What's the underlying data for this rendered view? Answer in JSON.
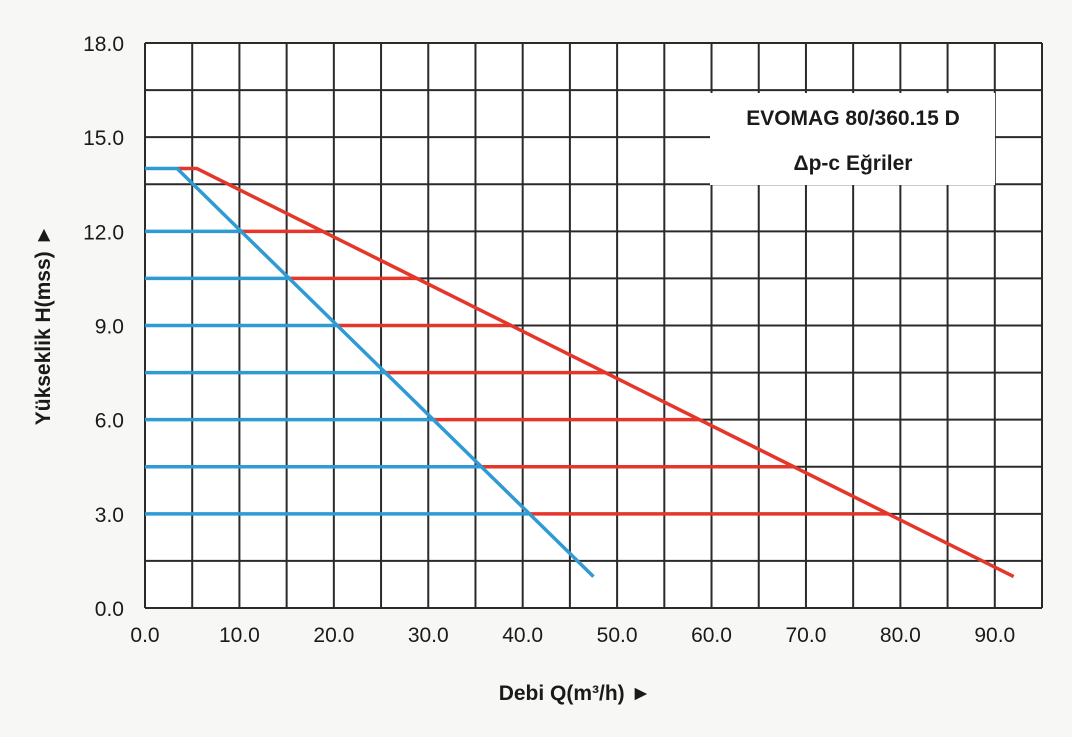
{
  "chart_data": {
    "type": "line",
    "title": "EVOMAG 80/360.15 D",
    "subtitle": "Δp-c Eğriler",
    "xlabel": "Debi Q(m³/h) ►",
    "ylabel": "Yükseklik H(mss) ►",
    "xlim": [
      0,
      95
    ],
    "ylim": [
      0,
      18
    ],
    "x_ticks": [
      "0.0",
      "10.0",
      "20.0",
      "30.0",
      "40.0",
      "50.0",
      "60.0",
      "70.0",
      "80.0",
      "90.0"
    ],
    "x_tick_values": [
      0,
      10,
      20,
      30,
      40,
      50,
      60,
      70,
      80,
      90
    ],
    "y_ticks": [
      "0.0",
      "3.0",
      "6.0",
      "9.0",
      "12.0",
      "15.0",
      "18.0"
    ],
    "y_tick_values": [
      0,
      3,
      6,
      9,
      12,
      15,
      18
    ],
    "grid": true,
    "grid_x_step": 5,
    "grid_y_step": 1.5,
    "legend_placement": "top-right",
    "colors": {
      "blue": "#2f9ad3",
      "red": "#e5362c",
      "grid": "#2a2a2a"
    },
    "series": [
      {
        "color": "blue",
        "points": [
          [
            0,
            14
          ],
          [
            3.4,
            14
          ],
          [
            47.5,
            1
          ]
        ]
      },
      {
        "color": "red",
        "points": [
          [
            3.4,
            14
          ],
          [
            5.5,
            14
          ],
          [
            92,
            1
          ]
        ]
      }
    ],
    "levels": [
      {
        "H": 12.0,
        "blue": [
          0,
          10.2
        ],
        "red": [
          10.2,
          18.8
        ]
      },
      {
        "H": 10.5,
        "blue": [
          0,
          15.3
        ],
        "red": [
          15.3,
          28.8
        ]
      },
      {
        "H": 9.0,
        "blue": [
          0,
          20.4
        ],
        "red": [
          20.4,
          38.8
        ]
      },
      {
        "H": 7.5,
        "blue": [
          0,
          25.4
        ],
        "red": [
          25.4,
          48.8
        ]
      },
      {
        "H": 6.0,
        "blue": [
          0,
          30.5
        ],
        "red": [
          30.5,
          58.7
        ]
      },
      {
        "H": 4.5,
        "blue": [
          0,
          35.6
        ],
        "red": [
          35.6,
          68.7
        ]
      },
      {
        "H": 3.0,
        "blue": [
          0,
          40.7
        ],
        "red": [
          40.7,
          78.7
        ]
      }
    ]
  }
}
